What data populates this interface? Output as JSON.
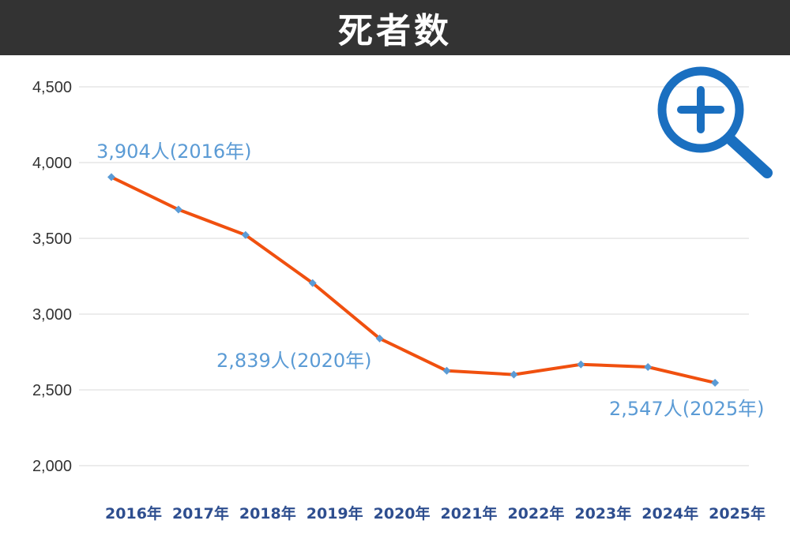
{
  "header": {
    "title": "死者数"
  },
  "colors": {
    "header_bg": "#333333",
    "line": "#f0500f",
    "marker": "#5b9bd5",
    "annotation": "#5b9bd5",
    "x_tick": "#2e4e8f",
    "y_tick": "#333333",
    "grid": "#d9d9d9",
    "zoom_icon": "#1a6fc0"
  },
  "zoom_button": {
    "icon": "zoom-in-icon"
  },
  "chart_data": {
    "type": "line",
    "title": "死者数",
    "xlabel": "",
    "ylabel": "",
    "ylim": [
      2000,
      4500
    ],
    "grid": true,
    "yticks": [
      "2,000",
      "2,500",
      "3,000",
      "3,500",
      "4,000",
      "4,500"
    ],
    "categories": [
      "2016年",
      "2017年",
      "2018年",
      "2019年",
      "2020年",
      "2021年",
      "2022年",
      "2023年",
      "2024年",
      "2025年"
    ],
    "series": [
      {
        "values": [
          3904,
          3690,
          3522,
          3205,
          2839,
          2626,
          2601,
          2668,
          2651,
          2547
        ]
      }
    ],
    "annotations": [
      {
        "index": 0,
        "text": "3,904人(2016年)"
      },
      {
        "index": 4,
        "text": "2,839人(2020年)"
      },
      {
        "index": 9,
        "text": "2,547人(2025年)"
      }
    ]
  }
}
